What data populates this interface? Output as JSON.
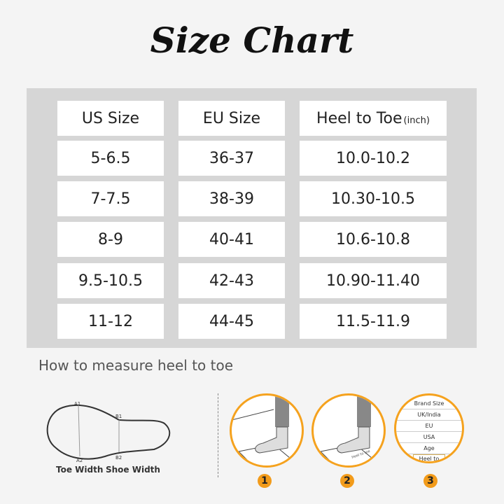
{
  "title": "Size Chart",
  "table": {
    "headers": [
      "US Size",
      "EU Size",
      "Heel to Toe"
    ],
    "header_unit": "(inch)",
    "rows": [
      [
        "5-6.5",
        "36-37",
        "10.0-10.2"
      ],
      [
        "7-7.5",
        "38-39",
        "10.30-10.5"
      ],
      [
        "8-9",
        "40-41",
        "10.6-10.8"
      ],
      [
        "9.5-10.5",
        "42-43",
        "10.90-11.40"
      ],
      [
        "11-12",
        "44-45",
        "11.5-11.9"
      ]
    ]
  },
  "howto": {
    "heading": "How to measure heel to toe",
    "sole_labels": [
      "A1",
      "A2",
      "B1",
      "B2"
    ],
    "toe_width": "Toe Width",
    "shoe_width": "Shoe Width",
    "paper_label": "Heel to toe",
    "size_list": [
      "Brand Size",
      "UK/India",
      "EU",
      "USA",
      "Age",
      "Heel to Toe"
    ],
    "steps": [
      "1",
      "2",
      "3"
    ],
    "accent": "#f5a21e"
  }
}
